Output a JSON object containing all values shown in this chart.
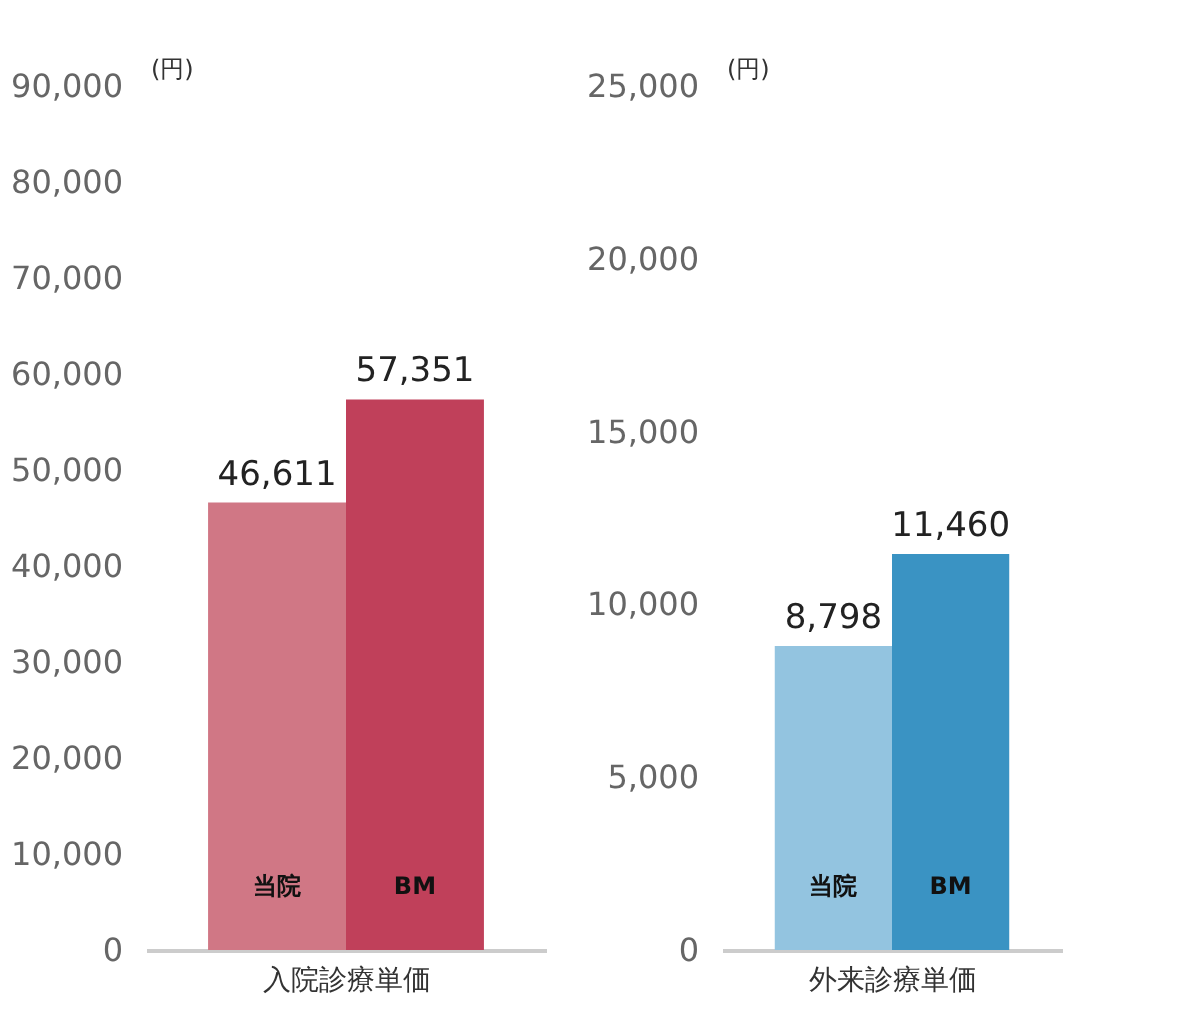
{
  "chart_data": [
    {
      "type": "bar",
      "categories": [
        "当院",
        "BM"
      ],
      "xlabel": "入院診療単価",
      "ylabel": "(円)",
      "colors": [
        "#d07785",
        "#c0405a"
      ],
      "values": [
        46611,
        57351
      ],
      "value_labels": [
        "46,611",
        "57,351"
      ],
      "ylim": [
        0,
        90000
      ],
      "yticks": [
        {
          "value": 0,
          "label": "0"
        },
        {
          "value": 10000,
          "label": "10,000"
        },
        {
          "value": 20000,
          "label": "20,000"
        },
        {
          "value": 30000,
          "label": "30,000"
        },
        {
          "value": 40000,
          "label": "40,000"
        },
        {
          "value": 50000,
          "label": "50,000"
        },
        {
          "value": 60000,
          "label": "60,000"
        },
        {
          "value": 70000,
          "label": "70,000"
        },
        {
          "value": 80000,
          "label": "80,000"
        },
        {
          "value": 90000,
          "label": "90,000"
        }
      ]
    },
    {
      "type": "bar",
      "categories": [
        "当院",
        "BM"
      ],
      "xlabel": "外来診療単価",
      "ylabel": "(円)",
      "colors": [
        "#93c4e0",
        "#3a93c3"
      ],
      "values": [
        8798,
        11460
      ],
      "value_labels": [
        "8,798",
        "11,460"
      ],
      "ylim": [
        0,
        25000
      ],
      "yticks": [
        {
          "value": 0,
          "label": "0"
        },
        {
          "value": 5000,
          "label": "5,000"
        },
        {
          "value": 10000,
          "label": "10,000"
        },
        {
          "value": 15000,
          "label": "15,000"
        },
        {
          "value": 20000,
          "label": "20,000"
        },
        {
          "value": 25000,
          "label": "25,000"
        }
      ]
    }
  ]
}
